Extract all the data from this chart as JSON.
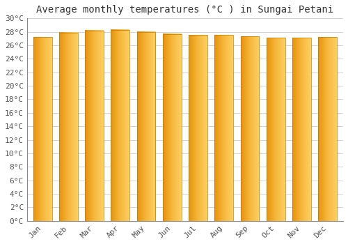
{
  "title": "Average monthly temperatures (°C ) in Sungai Petani",
  "months": [
    "Jan",
    "Feb",
    "Mar",
    "Apr",
    "May",
    "Jun",
    "Jul",
    "Aug",
    "Sep",
    "Oct",
    "Nov",
    "Dec"
  ],
  "temperatures": [
    27.2,
    27.9,
    28.2,
    28.3,
    28.0,
    27.7,
    27.5,
    27.5,
    27.3,
    27.1,
    27.1,
    27.2
  ],
  "ylim": [
    0,
    30
  ],
  "yticks": [
    0,
    2,
    4,
    6,
    8,
    10,
    12,
    14,
    16,
    18,
    20,
    22,
    24,
    26,
    28,
    30
  ],
  "bar_color_left": "#E8920A",
  "bar_color_mid": "#F5B83D",
  "bar_color_right": "#FDD060",
  "bar_edge_color": "#C07800",
  "background_color": "#FFFFFF",
  "plot_bg_color": "#FFFFFF",
  "grid_color": "#CCCCCC",
  "title_fontsize": 10,
  "tick_fontsize": 8,
  "title_color": "#333333",
  "tick_color": "#555555",
  "bar_width": 0.72
}
